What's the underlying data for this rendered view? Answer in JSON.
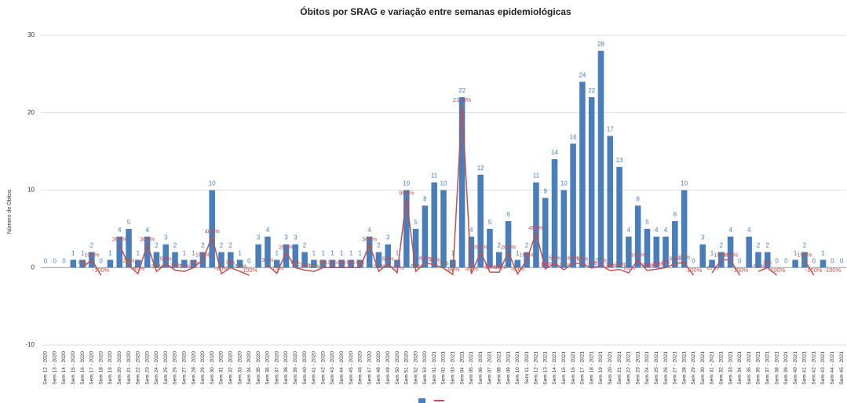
{
  "chart_data": {
    "type": "bar-line",
    "title": "Óbitos por SRAG e variação entre semanas epidemiológicas",
    "y_label": "Número de Óbitos",
    "categories": [
      "Sem 12 - 2020",
      "Sem 13 - 2020",
      "Sem 14 - 2020",
      "Sem 15 - 2020",
      "Sem 16 - 2020",
      "Sem 17 - 2020",
      "Sem 18 - 2020",
      "Sem 19 - 2020",
      "Sem 20 - 2020",
      "Sem 21 - 2020",
      "Sem 22 - 2020",
      "Sem 23 - 2020",
      "Sem 24 - 2020",
      "Sem 25 - 2020",
      "Sem 26 - 2020",
      "Sem 27 - 2020",
      "Sem 28 - 2020",
      "Sem 29 - 2020",
      "Sem 30 - 2020",
      "Sem 31 - 2020",
      "Sem 32 - 2020",
      "Sem 33 - 2020",
      "Sem 34 - 2020",
      "Sem 35 - 2020",
      "Sem 36 - 2020",
      "Sem 37 - 2020",
      "Sem 38 - 2020",
      "Sem 39 - 2020",
      "Sem 40 - 2020",
      "Sem 41 - 2020",
      "Sem 42 - 2020",
      "Sem 43 - 2020",
      "Sem 44 - 2020",
      "Sem 45 - 2020",
      "Sem 46 - 2020",
      "Sem 47 - 2020",
      "Sem 48 - 2020",
      "Sem 49 - 2020",
      "Sem 50 - 2020",
      "Sem 51 - 2020",
      "Sem 52 - 2020",
      "Sem 53 - 2020",
      "Sem 01 - 2021",
      "Sem 02 - 2021",
      "Sem 03 - 2021",
      "Sem 04 - 2021",
      "Sem 05 - 2021",
      "Sem 06 - 2021",
      "Sem 07 - 2021",
      "Sem 08 - 2021",
      "Sem 09 - 2021",
      "Sem 10 - 2021",
      "Sem 11 - 2021",
      "Sem 12 - 2021",
      "Sem 13 - 2021",
      "Sem 14 - 2021",
      "Sem 15 - 2021",
      "Sem 16 - 2021",
      "Sem 17 - 2021",
      "Sem 18 - 2021",
      "Sem 19 - 2021",
      "Sem 20 - 2021",
      "Sem 21 - 2021",
      "Sem 22 - 2021",
      "Sem 23 - 2021",
      "Sem 24 - 2021",
      "Sem 25 - 2021",
      "Sem 26 - 2021",
      "Sem 27 - 2021",
      "Sem 28 - 2021",
      "Sem 29 - 2021",
      "Sem 30 - 2021",
      "Sem 31 - 2021",
      "Sem 32 - 2021",
      "Sem 33 - 2021",
      "Sem 34 - 2021",
      "Sem 35 - 2021",
      "Sem 36 - 2021",
      "Sem 37 - 2021",
      "Sem 38 - 2021",
      "Sem 39 - 2021",
      "Sem 40 - 2021",
      "Sem 41 - 2021",
      "Sem 42 - 2021",
      "Sem 43 - 2021",
      "Sem 44 - 2021",
      "Sem 45 - 2021"
    ],
    "series": [
      {
        "type": "bar",
        "color": "#4a7ebb",
        "values": [
          0,
          0,
          0,
          1,
          1,
          2,
          0,
          1,
          4,
          5,
          1,
          4,
          2,
          3,
          2,
          1,
          1,
          2,
          10,
          2,
          2,
          1,
          0,
          3,
          4,
          1,
          3,
          3,
          2,
          1,
          1,
          1,
          1,
          1,
          1,
          4,
          2,
          3,
          1,
          10,
          5,
          8,
          11,
          10,
          1,
          22,
          4,
          12,
          5,
          2,
          6,
          1,
          2,
          11,
          9,
          14,
          10,
          16,
          24,
          22,
          28,
          17,
          13,
          4,
          8,
          5,
          4,
          4,
          6,
          10,
          0,
          3,
          1,
          2,
          4,
          0,
          4,
          2,
          2,
          0,
          0,
          1,
          2,
          0,
          1,
          0,
          0
        ]
      },
      {
        "type": "line",
        "color": "#c0504d",
        "values": [
          null,
          null,
          null,
          null,
          0,
          1,
          -1,
          null,
          3,
          0.25,
          -0.8,
          3,
          -0.5,
          0.5,
          -0.33,
          -0.5,
          0,
          1,
          4,
          -0.8,
          0,
          -0.5,
          -1,
          null,
          0.33,
          -0.75,
          2,
          0,
          -0.33,
          -0.5,
          0,
          0,
          0,
          0,
          0,
          3,
          -0.5,
          0.5,
          -0.67,
          9,
          -0.5,
          0.6,
          0.38,
          -0.09,
          -0.9,
          21,
          -0.82,
          2,
          -0.58,
          -0.6,
          2,
          -0.83,
          1,
          4.5,
          -0.18,
          0.56,
          -0.29,
          0.6,
          0.5,
          -0.08,
          0.27,
          -0.39,
          -0.24,
          -0.69,
          1,
          -0.38,
          -0.2,
          0,
          0.5,
          0.67,
          -1,
          null,
          -0.67,
          1,
          1,
          -1,
          null,
          -0.5,
          0,
          -1,
          null,
          null,
          1,
          -1,
          null,
          -1,
          null
        ],
        "value_labels": [
          null,
          null,
          null,
          null,
          "0%",
          "100%",
          "-100%",
          null,
          "300%",
          "25%",
          "-80%",
          "300%",
          "-50%",
          "50%",
          "-33%",
          "-50%",
          "0%",
          "100%",
          "400%",
          "-80%",
          "0%",
          "-50%",
          "-100%",
          null,
          "33%",
          "-75%",
          "200%",
          "0%",
          "-33%",
          "-50%",
          "0%",
          "0%",
          "0%",
          "0%",
          "0%",
          "300%",
          "-50%",
          "50%",
          "-67%",
          "900%",
          "-50%",
          "60%",
          "38%",
          "-9%",
          "-90%",
          "2100%",
          "-82%",
          "200%",
          "-58%",
          "-60%",
          "200%",
          "-83%",
          "100%",
          "450%",
          "-18%",
          "56%",
          "-29%",
          "60%",
          "50%",
          "-8%",
          "27%",
          "-39%",
          "-24%",
          "-69%",
          "100%",
          "-38%",
          "-20%",
          "0%",
          "50%",
          "67%",
          "-100%",
          null,
          "-67%",
          "100%",
          "100%",
          "-100%",
          null,
          "-50%",
          "0%",
          "-100%",
          null,
          null,
          "100%",
          "-100%",
          null,
          "-100%",
          null
        ]
      }
    ],
    "ylim": [
      -10,
      30
    ],
    "yticks": [
      -10,
      0,
      10,
      20,
      30
    ],
    "grid": true
  }
}
